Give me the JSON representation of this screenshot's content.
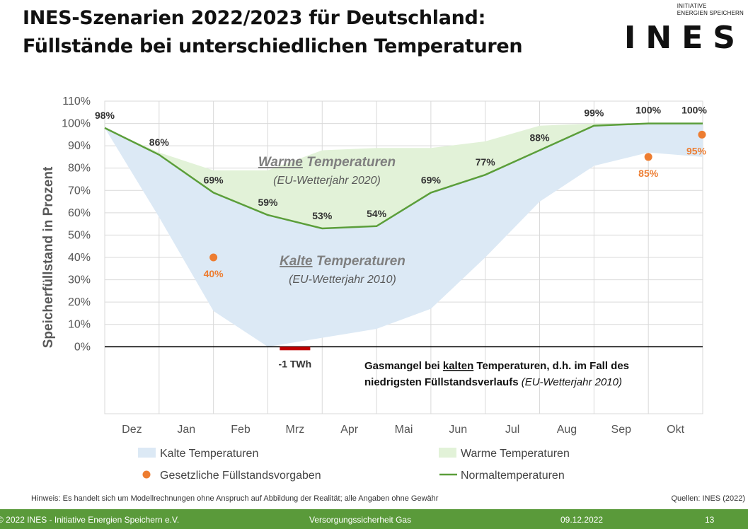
{
  "title_line1": "INES-Szenarien 2022/2023 für Deutschland:",
  "title_line2": "Füllstände bei unterschiedlichen Temperaturen",
  "logo": {
    "line1": "INITIATIVE",
    "line2": "ENERGIEN SPEICHERN",
    "word": "INES"
  },
  "colors": {
    "cold": "#dce9f5",
    "warm": "#e2f2d8",
    "normal": "#5b9e3a",
    "legal": "#ed7d31",
    "deficit": "#c00000",
    "footer": "#5a9a3a"
  },
  "chart_data": {
    "type": "area",
    "ylabel": "Speicherfüllstand in Prozent",
    "ylim": [
      -30,
      110
    ],
    "yticks": [
      "110%",
      "100%",
      "90%",
      "80%",
      "70%",
      "60%",
      "50%",
      "40%",
      "30%",
      "20%",
      "10%",
      "0%"
    ],
    "months": [
      "Dez",
      "Jan",
      "Feb",
      "Mrz",
      "Apr",
      "Mai",
      "Jun",
      "Jul",
      "Aug",
      "Sep",
      "Okt"
    ],
    "series": [
      {
        "name": "Kalte Temperaturen",
        "x": [
          0,
          1,
          2,
          3,
          4,
          5,
          6,
          7,
          8,
          9,
          10,
          11
        ],
        "values": [
          98,
          58,
          16,
          0,
          4,
          8,
          17,
          40,
          65,
          81,
          87,
          85
        ]
      },
      {
        "name": "Warme Temperaturen",
        "x": [
          0,
          1,
          2,
          3,
          4,
          5,
          6,
          7,
          8,
          9,
          10,
          11
        ],
        "values": [
          98,
          87,
          79,
          79,
          88,
          89,
          89,
          92,
          99,
          100,
          100,
          100
        ]
      },
      {
        "name": "Normaltemperaturen",
        "x": [
          0,
          1,
          2,
          3,
          4,
          5,
          6,
          7,
          8,
          9,
          10,
          11
        ],
        "values": [
          98,
          86,
          69,
          59,
          53,
          54,
          69,
          77,
          88,
          99,
          100,
          100
        ]
      }
    ],
    "normal_labels": [
      {
        "x": 0,
        "y": 98,
        "text": "98%"
      },
      {
        "x": 1,
        "y": 86,
        "text": "86%"
      },
      {
        "x": 2,
        "y": 69,
        "text": "69%"
      },
      {
        "x": 3,
        "y": 59,
        "text": "59%"
      },
      {
        "x": 4,
        "y": 53,
        "text": "53%"
      },
      {
        "x": 5,
        "y": 54,
        "text": "54%"
      },
      {
        "x": 6,
        "y": 69,
        "text": "69%"
      },
      {
        "x": 7,
        "y": 77,
        "text": "77%"
      },
      {
        "x": 8,
        "y": 88,
        "text": "88%"
      },
      {
        "x": 9,
        "y": 99,
        "text": "99%"
      },
      {
        "x": 10,
        "y": 100,
        "text": "100%"
      },
      {
        "x": 11,
        "y": 100,
        "text": "100%"
      }
    ],
    "legal_points": [
      {
        "x": 2,
        "y": 40,
        "text": "40%"
      },
      {
        "x": 10,
        "y": 85,
        "text": "85%"
      },
      {
        "x": 11,
        "y": 95,
        "text": "95%"
      }
    ],
    "deficit": {
      "x0": 3.22,
      "x1": 3.78,
      "value": "-1 TWh"
    },
    "annotations": {
      "warm_title_bold": "Warme",
      "warm_title_rest": " Temperaturen",
      "warm_sub": "(EU-Wetterjahr 2020)",
      "cold_title_bold": "Kalte",
      "cold_title_rest": " Temperaturen",
      "cold_sub": "(EU-Wetterjahr 2010)",
      "gas_line1_a": "Gasmangel bei ",
      "gas_line1_b": "kalten",
      "gas_line1_c": " Temperaturen, d.h. im Fall des",
      "gas_line2_a": "niedrigsten Füllstandsverlaufs ",
      "gas_line2_b": "(EU-Wetterjahr 2010)"
    },
    "legend": [
      "Kalte Temperaturen",
      "Warme Temperaturen",
      "Gesetzliche Füllstandsvorgaben",
      "Normaltemperaturen"
    ]
  },
  "hint": "Hinweis: Es handelt sich um Modellrechnungen ohne Anspruch auf Abbildung der Realität; alle Angaben ohne Gewähr",
  "source": "Quellen: INES (2022)",
  "footer": {
    "copyright": "© 2022 INES - Initiative Energien Speichern e.V.",
    "topic": "Versorgungssicherheit Gas",
    "date": "09.12.2022",
    "page": "13"
  }
}
